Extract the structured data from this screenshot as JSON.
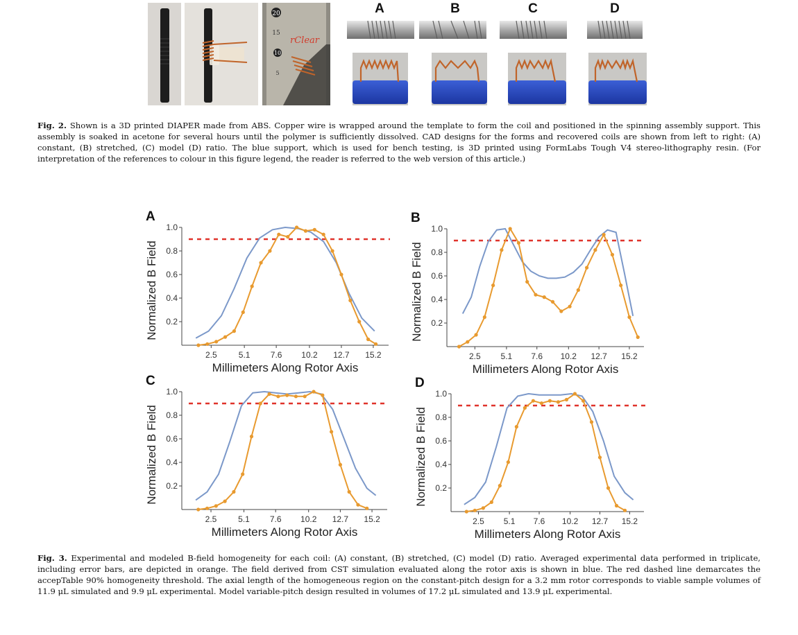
{
  "fig2": {
    "cad_labels": [
      "A",
      "B",
      "C",
      "D"
    ],
    "tube_marks": [
      "20",
      "15",
      "10",
      "5"
    ],
    "tube_brand": "rClear",
    "caption_label": "Fig. 2.",
    "caption_text": " Shown is a 3D printed DIAPER made from ABS. Copper wire is wrapped around the template to form the coil and positioned in the spinning assembly support. This assembly is soaked in acetone for several hours until the polymer is sufficiently dissolved. CAD designs for the forms and recovered coils are shown from left to right: (A) constant, (B) stretched, (C) model (D) ratio. The blue support, which is used for bench testing, is 3D printed using FormLabs Tough V4 stereo-lithography resin. (For interpretation of the references to colour in this figure legend, the reader is referred to the web version of this article.)"
  },
  "fig3": {
    "caption_label": "Fig. 3.",
    "caption_text": " Experimental and modeled B-field homogeneity for each coil: (A) constant, (B) stretched, (C) model (D) ratio. Averaged experimental data performed in triplicate, including error bars, are depicted in orange. The field derived from CST simulation evaluated along the rotor axis is shown in blue. The red dashed line demarcates the accepTable 90% homogeneity threshold. The axial length of the homogeneous region on the constant-pitch design for a 3.2 mm rotor corresponds to viable sample volumes of 11.9 μL simulated and 9.9 μL experimental. Model variable-pitch design resulted in volumes of 17.2 μL simulated and 13.9 μL experimental."
  },
  "colors": {
    "simulated": "#7b98c9",
    "experimental": "#e89a2f",
    "threshold": "#e0332b"
  },
  "chart_data": [
    {
      "panel": "A",
      "type": "line",
      "xlabel": "Millimeters Along Rotor Axis",
      "ylabel": "Normalized B Field",
      "xticks": [
        2.5,
        5.1,
        7.6,
        10.2,
        12.7,
        15.2
      ],
      "yticks": [
        0.2,
        0.4,
        0.6,
        0.8,
        1.0
      ],
      "xlim": [
        0.2,
        16.4
      ],
      "ylim": [
        0,
        1.0
      ],
      "threshold": 0.9,
      "series": [
        {
          "name": "CST simulation",
          "color": "#7b98c9",
          "x": [
            1.3,
            2.3,
            3.3,
            4.3,
            5.3,
            6.3,
            7.3,
            8.3,
            9.3,
            10.3,
            11.3,
            12.3,
            13.3,
            14.3,
            15.3
          ],
          "y": [
            0.06,
            0.12,
            0.25,
            0.48,
            0.74,
            0.91,
            0.98,
            1.0,
            0.99,
            0.96,
            0.88,
            0.7,
            0.44,
            0.23,
            0.12
          ]
        },
        {
          "name": "Experimental",
          "color": "#e89a2f",
          "markers": true,
          "x": [
            1.5,
            2.2,
            2.9,
            3.6,
            4.3,
            5.0,
            5.7,
            6.4,
            7.1,
            7.8,
            8.5,
            9.2,
            9.9,
            10.6,
            11.3,
            12.0,
            12.7,
            13.4,
            14.1,
            14.8,
            15.4
          ],
          "y": [
            0.0,
            0.01,
            0.03,
            0.07,
            0.12,
            0.28,
            0.5,
            0.7,
            0.8,
            0.94,
            0.92,
            1.0,
            0.97,
            0.98,
            0.94,
            0.8,
            0.6,
            0.38,
            0.2,
            0.05,
            0.01
          ]
        }
      ]
    },
    {
      "panel": "B",
      "type": "line",
      "xlabel": "Millimeters Along Rotor Axis",
      "ylabel": "Normalized B Field",
      "xticks": [
        2.5,
        5.1,
        7.6,
        10.2,
        12.7,
        15.2
      ],
      "yticks": [
        0.2,
        0.4,
        0.6,
        0.8,
        1.0
      ],
      "xlim": [
        0.2,
        16.4
      ],
      "ylim": [
        0,
        1.0
      ],
      "threshold": 0.9,
      "series": [
        {
          "name": "CST simulation",
          "color": "#7b98c9",
          "x": [
            1.5,
            2.2,
            2.9,
            3.6,
            4.3,
            5.0,
            5.7,
            6.4,
            7.1,
            7.8,
            8.5,
            9.2,
            9.9,
            10.6,
            11.3,
            12.0,
            12.7,
            13.4,
            14.1,
            14.8,
            15.5
          ],
          "y": [
            0.28,
            0.42,
            0.68,
            0.89,
            0.99,
            1.0,
            0.86,
            0.72,
            0.64,
            0.6,
            0.58,
            0.58,
            0.59,
            0.63,
            0.7,
            0.82,
            0.93,
            0.99,
            0.97,
            0.62,
            0.26
          ]
        },
        {
          "name": "Experimental",
          "color": "#e89a2f",
          "markers": true,
          "x": [
            1.2,
            1.9,
            2.6,
            3.3,
            4.0,
            4.7,
            5.4,
            6.1,
            6.8,
            7.5,
            8.2,
            8.9,
            9.6,
            10.3,
            11.0,
            11.7,
            12.4,
            13.1,
            13.8,
            14.5,
            15.2,
            15.9
          ],
          "y": [
            0.0,
            0.04,
            0.1,
            0.25,
            0.52,
            0.82,
            1.0,
            0.88,
            0.55,
            0.44,
            0.42,
            0.38,
            0.3,
            0.34,
            0.48,
            0.67,
            0.82,
            0.95,
            0.78,
            0.52,
            0.25,
            0.08
          ]
        }
      ]
    },
    {
      "panel": "C",
      "type": "line",
      "xlabel": "Millimeters Along Rotor Axis",
      "ylabel": "Normalized B Field",
      "xticks": [
        2.5,
        5.1,
        7.6,
        10.2,
        12.7,
        15.2
      ],
      "yticks": [
        0.2,
        0.4,
        0.6,
        0.8,
        1.0
      ],
      "xlim": [
        0.2,
        16.4
      ],
      "ylim": [
        0,
        1.0
      ],
      "threshold": 0.9,
      "series": [
        {
          "name": "CST simulation",
          "color": "#7b98c9",
          "x": [
            1.3,
            2.2,
            3.1,
            4.0,
            4.9,
            5.8,
            6.7,
            7.6,
            8.5,
            9.4,
            10.3,
            11.2,
            12.1,
            13.0,
            13.9,
            14.8,
            15.5
          ],
          "y": [
            0.08,
            0.15,
            0.3,
            0.58,
            0.88,
            0.99,
            1.0,
            0.99,
            0.98,
            0.99,
            1.0,
            0.98,
            0.85,
            0.6,
            0.35,
            0.18,
            0.12
          ]
        },
        {
          "name": "Experimental",
          "color": "#e89a2f",
          "markers": true,
          "x": [
            1.5,
            2.2,
            2.9,
            3.6,
            4.3,
            5.0,
            5.7,
            6.4,
            7.1,
            7.8,
            8.5,
            9.2,
            9.9,
            10.6,
            11.3,
            12.0,
            12.7,
            13.4,
            14.1,
            14.8
          ],
          "y": [
            0.0,
            0.01,
            0.03,
            0.07,
            0.15,
            0.3,
            0.62,
            0.9,
            0.98,
            0.96,
            0.97,
            0.96,
            0.96,
            1.0,
            0.97,
            0.66,
            0.38,
            0.15,
            0.04,
            0.01
          ]
        }
      ]
    },
    {
      "panel": "D",
      "type": "line",
      "xlabel": "Millimeters Along Rotor Axis",
      "ylabel": "Normalized B Field",
      "xticks": [
        2.5,
        5.1,
        7.6,
        10.2,
        12.7,
        15.2
      ],
      "yticks": [
        0.2,
        0.4,
        0.6,
        0.8,
        1.0
      ],
      "xlim": [
        0.2,
        16.4
      ],
      "ylim": [
        0,
        1.0
      ],
      "threshold": 0.9,
      "series": [
        {
          "name": "CST simulation",
          "color": "#7b98c9",
          "x": [
            1.3,
            2.2,
            3.1,
            4.0,
            4.9,
            5.8,
            6.7,
            7.6,
            8.5,
            9.4,
            10.3,
            11.2,
            12.1,
            13.0,
            13.9,
            14.8,
            15.5
          ],
          "y": [
            0.06,
            0.12,
            0.25,
            0.55,
            0.88,
            0.98,
            1.0,
            0.99,
            0.99,
            0.99,
            1.0,
            0.98,
            0.85,
            0.6,
            0.3,
            0.16,
            0.1
          ]
        },
        {
          "name": "Experimental",
          "color": "#e89a2f",
          "markers": true,
          "x": [
            1.5,
            2.2,
            2.9,
            3.6,
            4.3,
            5.0,
            5.7,
            6.4,
            7.1,
            7.8,
            8.5,
            9.2,
            9.9,
            10.6,
            11.3,
            12.0,
            12.7,
            13.4,
            14.1,
            14.8
          ],
          "y": [
            0.0,
            0.01,
            0.03,
            0.08,
            0.22,
            0.42,
            0.72,
            0.88,
            0.94,
            0.92,
            0.94,
            0.93,
            0.95,
            1.0,
            0.94,
            0.76,
            0.46,
            0.2,
            0.05,
            0.01
          ]
        }
      ]
    }
  ]
}
